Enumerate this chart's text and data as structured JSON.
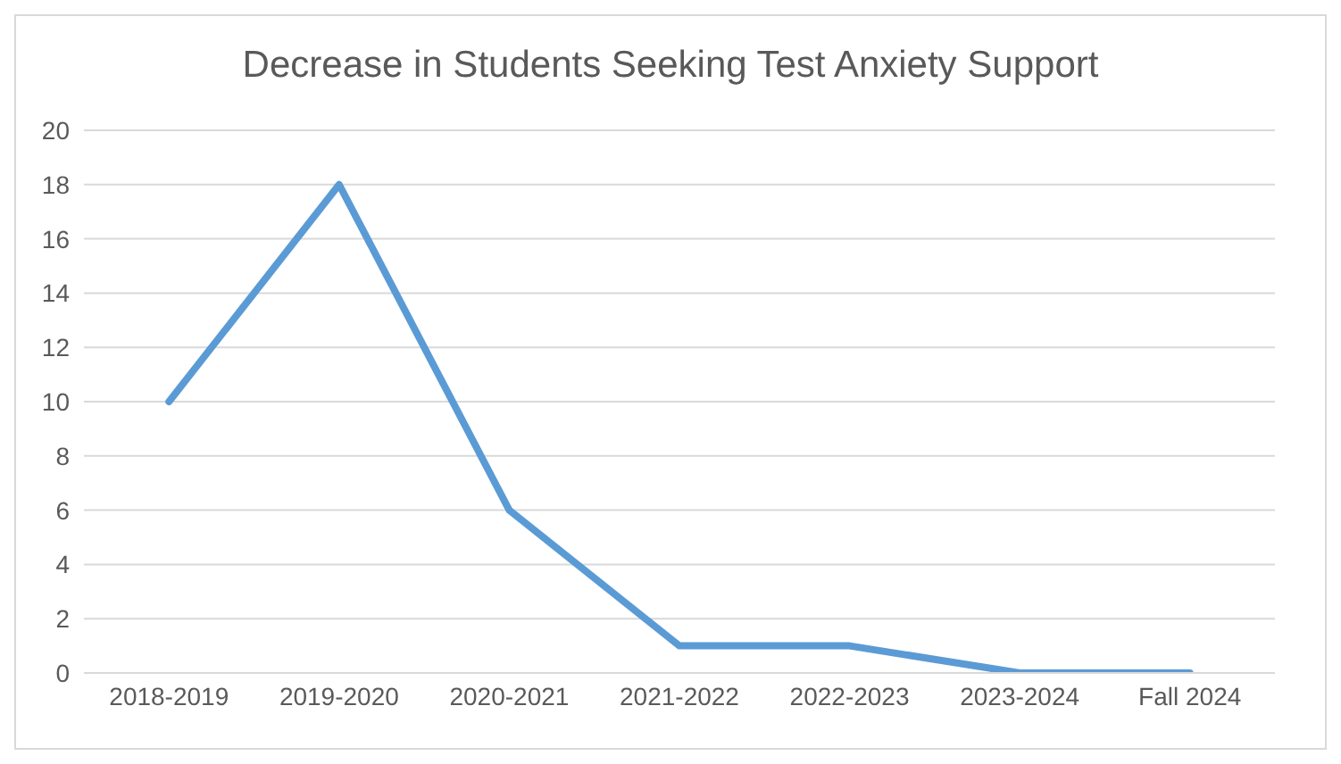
{
  "chart_data": {
    "type": "line",
    "title": "Decrease in Students Seeking Test Anxiety Support",
    "categories": [
      "2018-2019",
      "2019-2020",
      "2020-2021",
      "2021-2022",
      "2022-2023",
      "2023-2024",
      "Fall 2024"
    ],
    "series": [
      {
        "color": "#5b9bd5",
        "values": [
          10,
          18,
          6,
          1,
          1,
          0,
          0
        ]
      }
    ],
    "ylim": [
      0,
      20
    ],
    "yticks": [
      0,
      2,
      4,
      6,
      8,
      10,
      12,
      14,
      16,
      18,
      20
    ],
    "grid": "y",
    "legend": false,
    "marker": "none",
    "line_style": "solid"
  }
}
